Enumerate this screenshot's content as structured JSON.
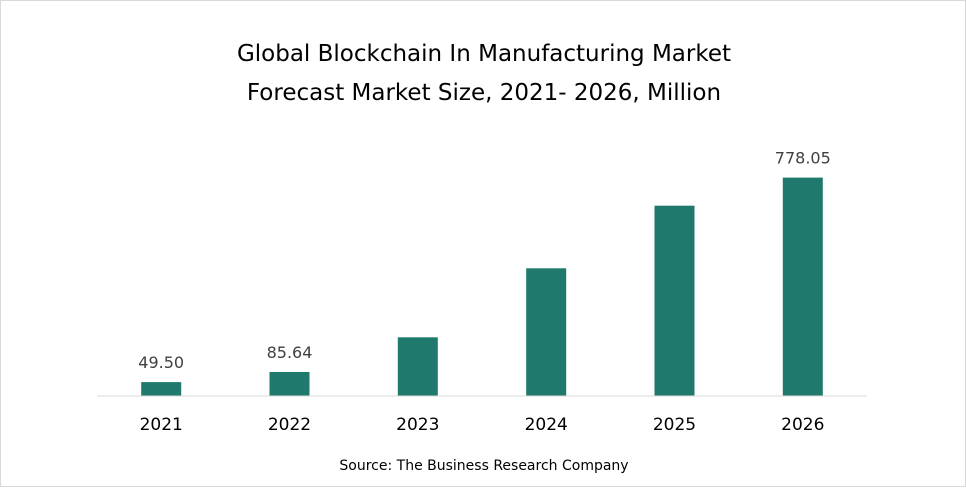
{
  "chart_data": {
    "type": "bar",
    "title": "Global Blockchain In Manufacturing Market",
    "subtitle": "Forecast Market Size, 2021- 2026, Million",
    "categories": [
      "2021",
      "2022",
      "2023",
      "2024",
      "2025",
      "2026"
    ],
    "values": [
      49.5,
      85.64,
      209,
      455,
      678,
      778.05
    ],
    "data_labels": [
      "49.50",
      "85.64",
      "",
      "",
      "",
      "778.05"
    ],
    "source": "Source: The Business Research Company",
    "xlabel": "",
    "ylabel": "",
    "ylim": [
      0,
      830
    ],
    "grid": false,
    "legend": "none",
    "bar_color": "#1f7a6d",
    "axis_color": "#d9d9d9"
  }
}
